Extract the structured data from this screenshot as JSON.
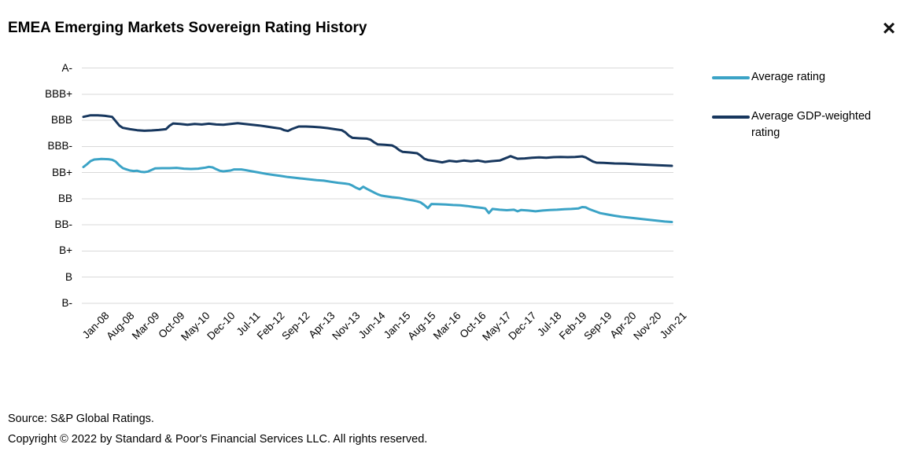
{
  "title": "EMEA Emerging Markets Sovereign Rating History",
  "window": {
    "close_glyph": "×"
  },
  "footer": {
    "source": "Source: S&P Global Ratings.",
    "copyright": "Copyright © 2022 by Standard & Poor's Financial Services LLC. All rights reserved."
  },
  "colors": {
    "average_rating_line": "#3BA3C6",
    "gdp_weighted_line": "#17375E",
    "gridline": "#D9D9D9",
    "text": "#000000"
  },
  "chart_data": {
    "type": "line",
    "title": "EMEA Emerging Markets Sovereign Rating History",
    "grid": "horizontal-only",
    "legend_position": "right",
    "x_unit": "months since Jan-2008 (monthly data, tick every 7 months)",
    "x_tick_labels": [
      "Jan-08",
      "Aug-08",
      "Mar-09",
      "Oct-09",
      "May-10",
      "Dec-10",
      "Jul-11",
      "Feb-12",
      "Sep-12",
      "Apr-13",
      "Nov-13",
      "Jun-14",
      "Jan-15",
      "Aug-15",
      "Mar-16",
      "Oct-16",
      "May-17",
      "Dec-17",
      "Jul-18",
      "Feb-19",
      "Sep-19",
      "Apr-20",
      "Nov-20",
      "Jun-21"
    ],
    "x_tick_month_interval": 7,
    "x_range_months": [
      0,
      164
    ],
    "y_axis_labels_top_to_bottom": [
      "A-",
      "BBB+",
      "BBB",
      "BBB-",
      "BB+",
      "BB",
      "BB-",
      "B+",
      "B",
      "B-"
    ],
    "rating_numeric_scale": {
      "B-": 1,
      "B": 2,
      "B+": 3,
      "BB-": 4,
      "BB": 5,
      "BB+": 6,
      "BBB-": 7,
      "BBB": 8,
      "BBB+": 9,
      "A-": 10
    },
    "ylim": [
      1,
      10
    ],
    "series": [
      {
        "name": "Average rating",
        "color": "#3BA3C6",
        "points": [
          [
            0,
            6.21
          ],
          [
            1,
            6.32
          ],
          [
            2,
            6.44
          ],
          [
            3,
            6.5
          ],
          [
            5,
            6.52
          ],
          [
            7,
            6.51
          ],
          [
            8,
            6.49
          ],
          [
            9,
            6.42
          ],
          [
            10,
            6.28
          ],
          [
            11,
            6.17
          ],
          [
            12,
            6.12
          ],
          [
            13,
            6.08
          ],
          [
            14,
            6.06
          ],
          [
            15,
            6.07
          ],
          [
            16,
            6.03
          ],
          [
            17,
            6.02
          ],
          [
            18,
            6.04
          ],
          [
            19,
            6.1
          ],
          [
            20,
            6.16
          ],
          [
            22,
            6.17
          ],
          [
            24,
            6.17
          ],
          [
            26,
            6.18
          ],
          [
            28,
            6.15
          ],
          [
            30,
            6.14
          ],
          [
            32,
            6.15
          ],
          [
            34,
            6.19
          ],
          [
            35,
            6.22
          ],
          [
            36,
            6.2
          ],
          [
            37,
            6.13
          ],
          [
            38,
            6.07
          ],
          [
            39,
            6.05
          ],
          [
            41,
            6.08
          ],
          [
            42,
            6.12
          ],
          [
            44,
            6.12
          ],
          [
            45,
            6.1
          ],
          [
            47,
            6.05
          ],
          [
            49,
            6.0
          ],
          [
            51,
            5.95
          ],
          [
            53,
            5.91
          ],
          [
            55,
            5.87
          ],
          [
            57,
            5.83
          ],
          [
            59,
            5.8
          ],
          [
            61,
            5.77
          ],
          [
            63,
            5.74
          ],
          [
            65,
            5.71
          ],
          [
            67,
            5.69
          ],
          [
            69,
            5.65
          ],
          [
            71,
            5.61
          ],
          [
            73,
            5.58
          ],
          [
            74,
            5.56
          ],
          [
            75,
            5.5
          ],
          [
            76,
            5.42
          ],
          [
            77,
            5.36
          ],
          [
            78,
            5.46
          ],
          [
            79,
            5.38
          ],
          [
            80,
            5.31
          ],
          [
            81,
            5.24
          ],
          [
            82,
            5.17
          ],
          [
            83,
            5.12
          ],
          [
            84,
            5.1
          ],
          [
            86,
            5.06
          ],
          [
            88,
            5.03
          ],
          [
            90,
            4.98
          ],
          [
            92,
            4.93
          ],
          [
            93,
            4.9
          ],
          [
            94,
            4.86
          ],
          [
            95,
            4.76
          ],
          [
            96,
            4.64
          ],
          [
            97,
            4.8
          ],
          [
            99,
            4.79
          ],
          [
            101,
            4.78
          ],
          [
            103,
            4.76
          ],
          [
            105,
            4.75
          ],
          [
            107,
            4.72
          ],
          [
            109,
            4.68
          ],
          [
            111,
            4.65
          ],
          [
            112,
            4.63
          ],
          [
            113,
            4.45
          ],
          [
            114,
            4.61
          ],
          [
            116,
            4.58
          ],
          [
            118,
            4.56
          ],
          [
            120,
            4.58
          ],
          [
            121,
            4.52
          ],
          [
            122,
            4.57
          ],
          [
            124,
            4.55
          ],
          [
            126,
            4.52
          ],
          [
            128,
            4.55
          ],
          [
            130,
            4.57
          ],
          [
            132,
            4.58
          ],
          [
            134,
            4.6
          ],
          [
            136,
            4.61
          ],
          [
            138,
            4.63
          ],
          [
            139,
            4.68
          ],
          [
            140,
            4.67
          ],
          [
            141,
            4.6
          ],
          [
            142,
            4.55
          ],
          [
            143,
            4.5
          ],
          [
            144,
            4.45
          ],
          [
            146,
            4.4
          ],
          [
            148,
            4.35
          ],
          [
            150,
            4.31
          ],
          [
            152,
            4.28
          ],
          [
            154,
            4.25
          ],
          [
            156,
            4.22
          ],
          [
            158,
            4.19
          ],
          [
            160,
            4.16
          ],
          [
            162,
            4.13
          ],
          [
            164,
            4.11
          ]
        ]
      },
      {
        "name": "Average GDP-weighted rating",
        "color": "#17375E",
        "points": [
          [
            0,
            8.13
          ],
          [
            2,
            8.19
          ],
          [
            4,
            8.19
          ],
          [
            6,
            8.17
          ],
          [
            8,
            8.13
          ],
          [
            9,
            7.97
          ],
          [
            10,
            7.8
          ],
          [
            11,
            7.71
          ],
          [
            13,
            7.66
          ],
          [
            15,
            7.62
          ],
          [
            17,
            7.6
          ],
          [
            19,
            7.61
          ],
          [
            21,
            7.63
          ],
          [
            23,
            7.66
          ],
          [
            24,
            7.79
          ],
          [
            25,
            7.88
          ],
          [
            27,
            7.86
          ],
          [
            29,
            7.83
          ],
          [
            31,
            7.86
          ],
          [
            33,
            7.84
          ],
          [
            35,
            7.87
          ],
          [
            37,
            7.84
          ],
          [
            39,
            7.83
          ],
          [
            41,
            7.86
          ],
          [
            43,
            7.89
          ],
          [
            45,
            7.86
          ],
          [
            47,
            7.83
          ],
          [
            49,
            7.8
          ],
          [
            51,
            7.76
          ],
          [
            53,
            7.72
          ],
          [
            55,
            7.68
          ],
          [
            56,
            7.62
          ],
          [
            57,
            7.59
          ],
          [
            58,
            7.66
          ],
          [
            60,
            7.76
          ],
          [
            62,
            7.76
          ],
          [
            64,
            7.75
          ],
          [
            66,
            7.73
          ],
          [
            68,
            7.7
          ],
          [
            70,
            7.66
          ],
          [
            72,
            7.62
          ],
          [
            73,
            7.54
          ],
          [
            74,
            7.41
          ],
          [
            75,
            7.33
          ],
          [
            77,
            7.31
          ],
          [
            79,
            7.3
          ],
          [
            80,
            7.26
          ],
          [
            81,
            7.16
          ],
          [
            82,
            7.08
          ],
          [
            84,
            7.06
          ],
          [
            86,
            7.04
          ],
          [
            87,
            6.97
          ],
          [
            88,
            6.86
          ],
          [
            89,
            6.79
          ],
          [
            91,
            6.77
          ],
          [
            93,
            6.74
          ],
          [
            94,
            6.65
          ],
          [
            95,
            6.53
          ],
          [
            96,
            6.48
          ],
          [
            98,
            6.44
          ],
          [
            100,
            6.39
          ],
          [
            102,
            6.45
          ],
          [
            104,
            6.42
          ],
          [
            106,
            6.46
          ],
          [
            108,
            6.43
          ],
          [
            110,
            6.46
          ],
          [
            112,
            6.41
          ],
          [
            114,
            6.44
          ],
          [
            116,
            6.46
          ],
          [
            118,
            6.57
          ],
          [
            119,
            6.63
          ],
          [
            120,
            6.58
          ],
          [
            121,
            6.53
          ],
          [
            123,
            6.54
          ],
          [
            125,
            6.57
          ],
          [
            127,
            6.58
          ],
          [
            129,
            6.57
          ],
          [
            131,
            6.59
          ],
          [
            133,
            6.6
          ],
          [
            135,
            6.59
          ],
          [
            137,
            6.6
          ],
          [
            139,
            6.62
          ],
          [
            140,
            6.58
          ],
          [
            141,
            6.5
          ],
          [
            142,
            6.42
          ],
          [
            143,
            6.38
          ],
          [
            145,
            6.37
          ],
          [
            148,
            6.35
          ],
          [
            151,
            6.34
          ],
          [
            154,
            6.32
          ],
          [
            157,
            6.3
          ],
          [
            160,
            6.28
          ],
          [
            162,
            6.27
          ],
          [
            164,
            6.26
          ]
        ]
      }
    ]
  }
}
